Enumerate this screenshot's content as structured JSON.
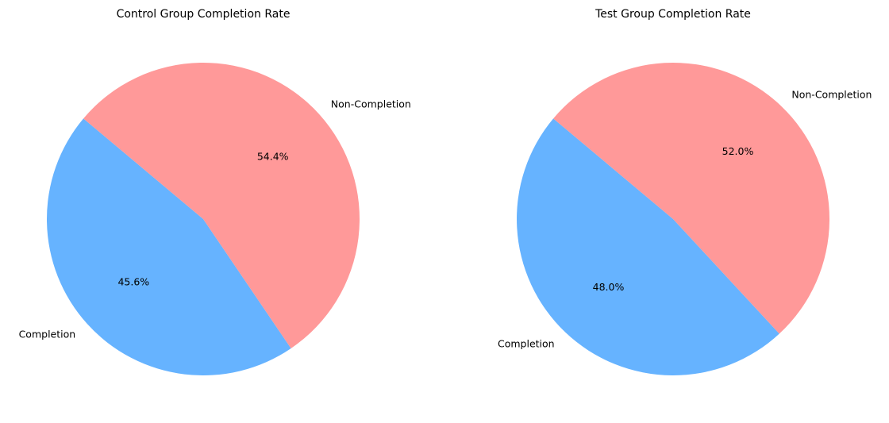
{
  "chart_data": [
    {
      "type": "pie",
      "title": "Control Group Completion Rate",
      "slices": [
        {
          "label": "Completion",
          "value": 45.6,
          "pct_text": "45.6%",
          "color": "#66b3ff"
        },
        {
          "label": "Non-Completion",
          "value": 54.4,
          "pct_text": "54.4%",
          "color": "#ff9999"
        }
      ],
      "start_angle_deg": 140,
      "direction": "counterclockwise",
      "legend": "none"
    },
    {
      "type": "pie",
      "title": "Test Group Completion Rate",
      "slices": [
        {
          "label": "Completion",
          "value": 48.0,
          "pct_text": "48.0%",
          "color": "#66b3ff"
        },
        {
          "label": "Non-Completion",
          "value": 52.0,
          "pct_text": "52.0%",
          "color": "#ff9999"
        }
      ],
      "start_angle_deg": 140,
      "direction": "counterclockwise",
      "legend": "none"
    }
  ]
}
